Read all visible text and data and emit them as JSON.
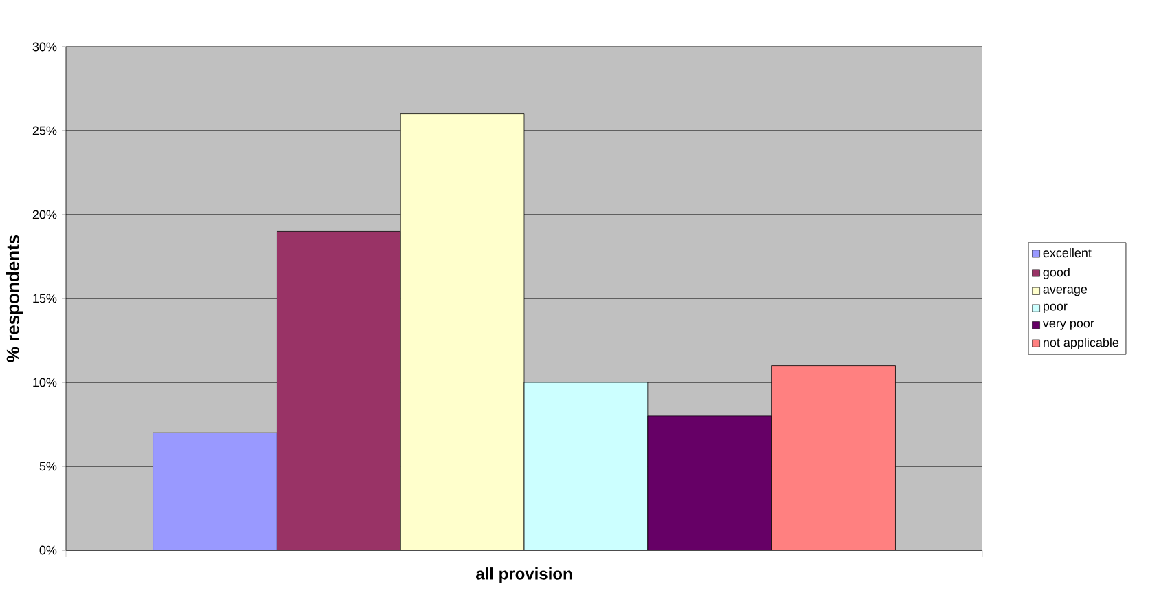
{
  "chart_data": {
    "type": "bar",
    "ylabel": "% respondents",
    "categories": [
      "all provision"
    ],
    "series": [
      {
        "name": "excellent",
        "color": "#9999ff",
        "values": [
          7
        ]
      },
      {
        "name": "good",
        "color": "#993366",
        "values": [
          19
        ]
      },
      {
        "name": "average",
        "color": "#ffffcc",
        "values": [
          26
        ]
      },
      {
        "name": "poor",
        "color": "#ccffff",
        "values": [
          10
        ]
      },
      {
        "name": "very poor",
        "color": "#660066",
        "values": [
          8
        ]
      },
      {
        "name": "not applicable",
        "color": "#ff8080",
        "values": [
          11
        ]
      }
    ],
    "ylim": [
      0,
      30
    ],
    "yticks": [
      {
        "value": 0,
        "label": "0%"
      },
      {
        "value": 5,
        "label": "5%"
      },
      {
        "value": 10,
        "label": "10%"
      },
      {
        "value": 15,
        "label": "15%"
      },
      {
        "value": 20,
        "label": "20%"
      },
      {
        "value": 25,
        "label": "25%"
      },
      {
        "value": 30,
        "label": "30%"
      }
    ],
    "grid": "y",
    "legend": "right"
  }
}
